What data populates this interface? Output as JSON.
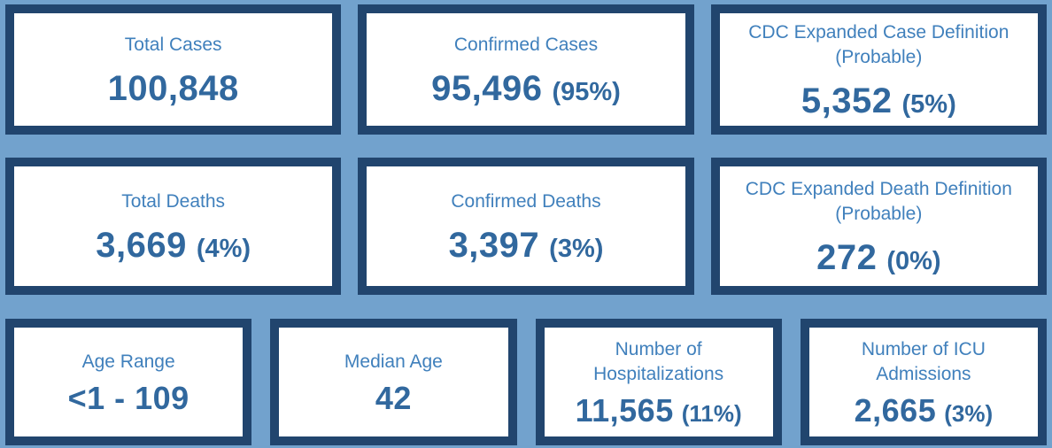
{
  "colors": {
    "page_background": "#72A2CD",
    "card_border": "#21456E",
    "card_background": "#FFFFFF",
    "label_text": "#4080BC",
    "value_text": "#31689E"
  },
  "rows": [
    {
      "cards": [
        {
          "label": "Total Cases",
          "value": "100,848",
          "percent": ""
        },
        {
          "label": "Confirmed Cases",
          "value": "95,496",
          "percent": "(95%)"
        },
        {
          "label": "CDC Expanded Case Definition (Probable)",
          "value": "5,352",
          "percent": "(5%)"
        }
      ]
    },
    {
      "cards": [
        {
          "label": "Total Deaths",
          "value": "3,669",
          "percent": "(4%)"
        },
        {
          "label": "Confirmed Deaths",
          "value": "3,397",
          "percent": "(3%)"
        },
        {
          "label": "CDC Expanded Death Definition (Probable)",
          "value": "272",
          "percent": "(0%)"
        }
      ]
    },
    {
      "cards": [
        {
          "label": "Age Range",
          "value": "<1 - 109",
          "percent": ""
        },
        {
          "label": "Median Age",
          "value": "42",
          "percent": ""
        },
        {
          "label": "Number of Hospitalizations",
          "value": "11,565",
          "percent": "(11%)"
        },
        {
          "label": "Number of ICU Admissions",
          "value": "2,665",
          "percent": "(3%)"
        }
      ]
    }
  ]
}
